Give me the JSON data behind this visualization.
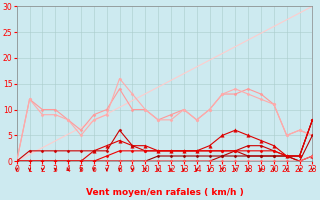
{
  "bg_color": "#cdeaf0",
  "grid_color": "#aacccc",
  "xlabel": "Vent moyen/en rafales ( km/h )",
  "xlim": [
    0,
    23
  ],
  "ylim": [
    0,
    30
  ],
  "yticks": [
    0,
    5,
    10,
    15,
    20,
    25,
    30
  ],
  "xticks": [
    0,
    1,
    2,
    3,
    4,
    5,
    6,
    7,
    8,
    9,
    10,
    11,
    12,
    13,
    14,
    15,
    16,
    17,
    18,
    19,
    20,
    21,
    22,
    23
  ],
  "series": [
    {
      "x": [
        0,
        1,
        2,
        3,
        4,
        5,
        6,
        7,
        8,
        9,
        10,
        11,
        12,
        13,
        14,
        15,
        16,
        17,
        18,
        19,
        20,
        21,
        22,
        23
      ],
      "y": [
        0,
        12,
        10,
        10,
        8,
        6,
        9,
        10,
        14,
        10,
        10,
        8,
        9,
        10,
        8,
        10,
        13,
        13,
        14,
        13,
        11,
        5,
        6,
        5
      ],
      "color": "#ff9999",
      "lw": 0.8,
      "marker": "D",
      "ms": 1.5
    },
    {
      "x": [
        0,
        1,
        2,
        3,
        4,
        5,
        6,
        7,
        8,
        9,
        10,
        11,
        12,
        13,
        14,
        15,
        16,
        17,
        18,
        19,
        20,
        21,
        22,
        23
      ],
      "y": [
        0,
        12,
        9,
        9,
        8,
        5,
        8,
        9,
        16,
        13,
        10,
        8,
        8,
        10,
        8,
        10,
        13,
        14,
        13,
        12,
        11,
        5,
        6,
        5
      ],
      "color": "#ffaaaa",
      "lw": 0.8,
      "marker": "D",
      "ms": 1.5
    },
    {
      "x": [
        0,
        1,
        2,
        3,
        4,
        5,
        6,
        7,
        8,
        9,
        10,
        11,
        12,
        13,
        14,
        15,
        16,
        17,
        18,
        19,
        20,
        21,
        22,
        23
      ],
      "y": [
        0,
        0,
        0,
        0,
        0,
        0,
        2,
        3,
        4,
        3,
        3,
        2,
        2,
        2,
        2,
        3,
        5,
        6,
        5,
        4,
        3,
        1,
        0,
        1
      ],
      "color": "#dd0000",
      "lw": 0.8,
      "marker": "^",
      "ms": 2.5
    },
    {
      "x": [
        0,
        1,
        2,
        3,
        4,
        5,
        6,
        7,
        8,
        9,
        10,
        11,
        12,
        13,
        14,
        15,
        16,
        17,
        18,
        19,
        20,
        21,
        22,
        23
      ],
      "y": [
        0,
        2,
        2,
        2,
        2,
        2,
        2,
        2,
        6,
        3,
        2,
        2,
        2,
        2,
        2,
        2,
        2,
        2,
        3,
        3,
        2,
        1,
        1,
        8
      ],
      "color": "#cc0000",
      "lw": 0.8,
      "marker": "D",
      "ms": 1.5
    },
    {
      "x": [
        0,
        1,
        2,
        3,
        4,
        5,
        6,
        7,
        8,
        9,
        10,
        11,
        12,
        13,
        14,
        15,
        16,
        17,
        18,
        19,
        20,
        21,
        22,
        23
      ],
      "y": [
        0,
        0,
        0,
        0,
        0,
        0,
        0,
        0,
        0,
        0,
        0,
        0,
        0,
        0,
        0,
        0,
        1,
        2,
        1,
        1,
        1,
        1,
        0,
        5
      ],
      "color": "#bb0000",
      "lw": 0.8,
      "marker": "D",
      "ms": 1.5
    },
    {
      "x": [
        0,
        1,
        2,
        3,
        4,
        5,
        6,
        7,
        8,
        9,
        10,
        11,
        12,
        13,
        14,
        15,
        16,
        17,
        18,
        19,
        20,
        21,
        22,
        23
      ],
      "y": [
        0,
        0,
        0,
        0,
        0,
        0,
        0,
        0,
        0,
        0,
        0,
        1,
        1,
        1,
        1,
        1,
        1,
        1,
        1,
        1,
        1,
        1,
        1,
        8
      ],
      "color": "#990000",
      "lw": 0.8,
      "marker": "D",
      "ms": 1.5
    },
    {
      "x": [
        0,
        1,
        2,
        3,
        4,
        5,
        6,
        7,
        8,
        9,
        10,
        11,
        12,
        13,
        14,
        15,
        16,
        17,
        18,
        19,
        20,
        21,
        22,
        23
      ],
      "y": [
        0,
        0,
        0,
        0,
        0,
        0,
        0,
        0,
        0,
        0,
        0,
        0,
        0,
        0,
        0,
        0,
        0,
        0,
        0,
        0,
        0,
        0,
        0,
        1
      ],
      "color": "#ff6666",
      "lw": 0.8,
      "marker": "D",
      "ms": 1.5
    },
    {
      "x": [
        0,
        1,
        2,
        3,
        4,
        5,
        6,
        7,
        8,
        9,
        10,
        11,
        12,
        13,
        14,
        15,
        16,
        17,
        18,
        19,
        20,
        21,
        22,
        23
      ],
      "y": [
        0,
        0,
        0,
        0,
        0,
        0,
        0,
        1,
        2,
        2,
        2,
        2,
        2,
        2,
        2,
        2,
        2,
        2,
        2,
        2,
        2,
        1,
        1,
        8
      ],
      "color": "#ee0000",
      "lw": 0.8,
      "marker": "D",
      "ms": 1.5
    },
    {
      "x": [
        0,
        23
      ],
      "y": [
        0,
        30
      ],
      "color": "#ffcccc",
      "lw": 0.8,
      "marker": null,
      "ms": 0
    }
  ],
  "arrow_color": "#cc0000",
  "xlabel_fontsize": 6.5,
  "tick_fontsize": 5.5,
  "xlabel_fontweight": "bold"
}
